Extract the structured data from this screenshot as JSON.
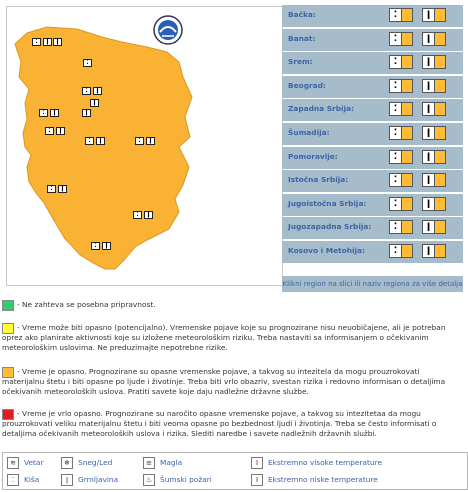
{
  "regions": [
    {
      "name": "Bačka:",
      "icon": "⁚•",
      "icon2": "Ǐ"
    },
    {
      "name": "Banat:",
      "icon": "⁚•",
      "icon2": "Ǐ"
    },
    {
      "name": "Srem:",
      "icon": "⁚•",
      "icon2": "Ǐ"
    },
    {
      "name": "Beograd:",
      "icon": "⁚•",
      "icon2": "Ǐ"
    },
    {
      "name": "Zapadna Srbija:",
      "icon": "⁚•",
      "icon2": "Ǐ"
    },
    {
      "name": "Šumadija:",
      "icon": "⁚•",
      "icon2": "Ǐ"
    },
    {
      "name": "Pomoravlje:",
      "icon": "⁚•",
      "icon2": "Ǐ"
    },
    {
      "name": "Istočna Srbija:",
      "icon": "⁚•",
      "icon2": "Ǐ"
    },
    {
      "name": "Jugoistočna Srbija:",
      "icon": "⁚•",
      "icon2": "Ǐ"
    },
    {
      "name": "Jugozapadna Srbija:",
      "icon": "⁚•",
      "icon2": "Ǐ"
    },
    {
      "name": "Kosovo i Metohija:",
      "icon": "⁚•",
      "icon2": "Ǐ"
    }
  ],
  "map_hint": "Klikni region na slici ili naziv regiona za više detalja",
  "legend": {
    "green": "- Ne zahteva se posebna pripravnost.",
    "yellow": "- Vreme može biti opasno (potencijalno). Vremenske pojave koje su prognozirane nisu neuobičajene, ali je potreban oprez ako planirate aktivnosti koje su izložene meteorološkim riziku. Treba nastaviti sa informisanjem o očekivanim meteorološkim uslovima. Ne preduzimajte nepotrebne rizike.",
    "orange": "- Vreme je opasno. Prognozirane su opasne vremenske pojave, a takvog su intezitela da mogu prouzrokovati materijalnu štetu i biti opasne po ljude i životinje. Treba biti vrlo obazriv, svestan rizika i redovno informisan o detaljima očekivanih meteoroloških uslova. Pratiti savete koje daju nadležne državne službe.",
    "red": "- Vreme je vrlo opasno. Prognozirane su naročito opasne vremenske pojave, a takvog su intezitetaa da mogu prouzrokovati veliku materijalnu štetu i biti veoma opasne po bezbednost ljudi i životinja. Treba se često informisati o detaljima očekivanih meteoroloških uslova i rizika. Slediti naredbe i savete nadležnih državnih službi."
  },
  "colors": {
    "green": "#33cc66",
    "yellow": "#ffff33",
    "orange": "#ffbb33",
    "red": "#e31b1b",
    "map": "#f9b233",
    "region_bg": "#a7bccb"
  },
  "phenomena": [
    {
      "icon": "wind-icon",
      "label": "Vetar"
    },
    {
      "icon": "snow-ice-icon",
      "label": "Sneg/Led"
    },
    {
      "icon": "fog-icon",
      "label": "Magla"
    },
    {
      "icon": "thermometer-high-icon",
      "label": "Ekstremno visoke temperature"
    },
    {
      "icon": "rain-icon",
      "label": "Kiša"
    },
    {
      "icon": "thunderstorm-icon",
      "label": "Grmljavina"
    },
    {
      "icon": "forest-fire-icon",
      "label": "Šumski požari"
    },
    {
      "icon": "thermometer-low-icon",
      "label": "Ekstremno niske temperature"
    }
  ]
}
